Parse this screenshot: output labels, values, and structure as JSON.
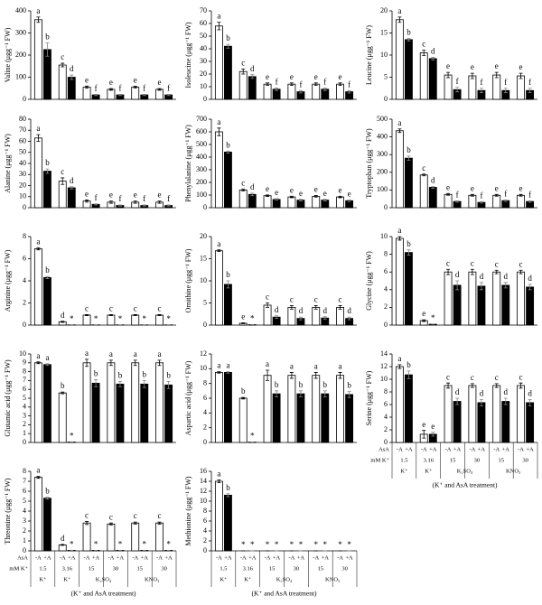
{
  "chart_data": [
    {
      "type": "bar",
      "ylabel": "Valine (μgg⁻¹ FW)",
      "ylim": [
        0,
        400
      ],
      "yticks": [
        0,
        100,
        200,
        300,
        400
      ],
      "series": [
        {
          "name": "-A",
          "color": "#ffffff",
          "values": [
            360,
            155,
            55,
            45,
            55,
            45
          ],
          "errors": [
            12,
            8,
            5,
            4,
            4,
            4
          ],
          "letters": [
            "a",
            "c",
            "e",
            "e",
            "e",
            "e"
          ]
        },
        {
          "name": "+A",
          "color": "#000000",
          "values": [
            225,
            100,
            20,
            20,
            20,
            20
          ],
          "errors": [
            30,
            10,
            3,
            3,
            3,
            3
          ],
          "letters": [
            "b",
            "d",
            "f",
            "f",
            "f",
            "f"
          ]
        }
      ]
    },
    {
      "type": "bar",
      "ylabel": "Isoleucine (μgg⁻¹ FW)",
      "ylim": [
        0,
        70
      ],
      "yticks": [
        0,
        10,
        20,
        30,
        40,
        50,
        60,
        70
      ],
      "series": [
        {
          "name": "-A",
          "color": "#ffffff",
          "values": [
            58,
            22,
            12,
            12,
            12,
            12
          ],
          "errors": [
            3,
            2,
            1,
            1,
            1,
            1
          ],
          "letters": [
            "a",
            "c",
            "e",
            "e",
            "e",
            "e"
          ]
        },
        {
          "name": "+A",
          "color": "#000000",
          "values": [
            42,
            18,
            8,
            6,
            8,
            6
          ],
          "errors": [
            1.5,
            1.5,
            1,
            1,
            1,
            1
          ],
          "letters": [
            "b",
            "d",
            "f",
            "f",
            "f",
            "f"
          ]
        }
      ]
    },
    {
      "type": "bar",
      "ylabel": "Leucine (μgg⁻¹ FW)",
      "ylim": [
        0,
        20
      ],
      "yticks": [
        0,
        5,
        10,
        15,
        20
      ],
      "series": [
        {
          "name": "-A",
          "color": "#ffffff",
          "values": [
            18,
            10.5,
            5.5,
            5.3,
            5.5,
            5.3
          ],
          "errors": [
            0.6,
            0.6,
            0.6,
            0.6,
            0.6,
            0.6
          ],
          "letters": [
            "a",
            "c",
            "e",
            "e",
            "e",
            "e"
          ]
        },
        {
          "name": "+A",
          "color": "#000000",
          "values": [
            13.5,
            9.2,
            2.2,
            2,
            2,
            2
          ],
          "errors": [
            0.3,
            0.3,
            0.5,
            0.5,
            0.5,
            0.5
          ],
          "letters": [
            "b",
            "d",
            "f",
            "f",
            "f",
            "f"
          ]
        }
      ]
    },
    {
      "type": "bar",
      "ylabel": "Alanine (μgg⁻¹ FW)",
      "ylim": [
        0,
        80
      ],
      "yticks": [
        0,
        10,
        20,
        30,
        40,
        50,
        60,
        70,
        80
      ],
      "series": [
        {
          "name": "-A",
          "color": "#ffffff",
          "values": [
            63,
            24,
            6,
            5,
            5,
            5
          ],
          "errors": [
            3,
            3,
            1,
            1,
            1,
            1
          ],
          "letters": [
            "a",
            "c",
            "e",
            "e",
            "e",
            "e"
          ]
        },
        {
          "name": "+A",
          "color": "#000000",
          "values": [
            33,
            18,
            3,
            2,
            2,
            2
          ],
          "errors": [
            2,
            1,
            0.5,
            0.5,
            0.5,
            0.5
          ],
          "letters": [
            "b",
            "d",
            "f",
            "f",
            "f",
            "f"
          ]
        }
      ]
    },
    {
      "type": "bar",
      "ylabel": "Phenylalanine (μgg⁻¹ FW)",
      "ylim": [
        0,
        700
      ],
      "yticks": [
        0,
        100,
        200,
        300,
        400,
        500,
        600,
        700
      ],
      "series": [
        {
          "name": "-A",
          "color": "#ffffff",
          "values": [
            600,
            140,
            95,
            85,
            90,
            85
          ],
          "errors": [
            30,
            8,
            6,
            6,
            6,
            6
          ],
          "letters": [
            "a",
            "c",
            "e",
            "e",
            "e",
            "e"
          ]
        },
        {
          "name": "+A",
          "color": "#000000",
          "values": [
            440,
            105,
            65,
            60,
            60,
            55
          ],
          "errors": [
            8,
            10,
            6,
            6,
            6,
            6
          ],
          "letters": [
            "b",
            "d",
            "e",
            "e",
            "e",
            "e"
          ]
        }
      ]
    },
    {
      "type": "bar",
      "ylabel": "Tryptophan (μgg⁻¹ FW)",
      "ylim": [
        0,
        500
      ],
      "yticks": [
        0,
        100,
        200,
        300,
        400,
        500
      ],
      "series": [
        {
          "name": "-A",
          "color": "#ffffff",
          "values": [
            435,
            185,
            75,
            70,
            70,
            70
          ],
          "errors": [
            10,
            5,
            5,
            5,
            5,
            5
          ],
          "letters": [
            "a",
            "c",
            "e",
            "e",
            "e",
            "e"
          ]
        },
        {
          "name": "+A",
          "color": "#000000",
          "values": [
            280,
            115,
            35,
            30,
            40,
            35
          ],
          "errors": [
            12,
            5,
            4,
            4,
            4,
            4
          ],
          "letters": [
            "b",
            "d",
            "f",
            "f",
            "f",
            "f"
          ]
        }
      ]
    },
    {
      "type": "bar",
      "ylabel": "Arginine (μgg⁻¹ FW)",
      "ylim": [
        0,
        8
      ],
      "yticks": [
        0,
        2,
        4,
        6,
        8
      ],
      "series": [
        {
          "name": "-A",
          "color": "#ffffff",
          "values": [
            6.9,
            0.3,
            0.9,
            0.9,
            0.9,
            0.9
          ],
          "errors": [
            0.1,
            0.05,
            0.05,
            0.05,
            0.05,
            0.05
          ],
          "letters": [
            "a",
            "d",
            "c",
            "c",
            "c",
            "c"
          ]
        },
        {
          "name": "+A",
          "color": "#000000",
          "values": [
            4.3,
            0.02,
            0.02,
            0.02,
            0.02,
            0.02
          ],
          "errors": [
            0.1,
            0,
            0,
            0,
            0,
            0
          ],
          "letters": [
            "b",
            "*",
            "*",
            "*",
            "*",
            "*"
          ]
        }
      ]
    },
    {
      "type": "bar",
      "ylabel": "Ornithine (μgg⁻¹ FW)",
      "ylim": [
        0,
        20
      ],
      "yticks": [
        0,
        5,
        10,
        15,
        20
      ],
      "series": [
        {
          "name": "-A",
          "color": "#ffffff",
          "values": [
            16.8,
            0.4,
            4.5,
            4,
            4,
            4
          ],
          "errors": [
            0.2,
            0.1,
            0.5,
            0.4,
            0.4,
            0.4
          ],
          "letters": [
            "a",
            "e",
            "c",
            "c",
            "c",
            "c"
          ]
        },
        {
          "name": "+A",
          "color": "#000000",
          "values": [
            9.2,
            0.1,
            1.8,
            1.5,
            1.6,
            1.5
          ],
          "errors": [
            0.8,
            0,
            0.3,
            0.3,
            0.3,
            0.3
          ],
          "letters": [
            "b",
            "*",
            "d",
            "d",
            "d",
            "d"
          ]
        }
      ]
    },
    {
      "type": "bar",
      "ylabel": "Glycine (μgg⁻¹ FW)",
      "ylim": [
        0,
        10
      ],
      "yticks": [
        0,
        2,
        4,
        6,
        8,
        10
      ],
      "series": [
        {
          "name": "-A",
          "color": "#ffffff",
          "values": [
            9.8,
            0.5,
            6,
            6,
            6,
            6
          ],
          "errors": [
            0.2,
            0.1,
            0.3,
            0.3,
            0.2,
            0.2
          ],
          "letters": [
            "a",
            "e",
            "c",
            "c",
            "c",
            "c"
          ]
        },
        {
          "name": "+A",
          "color": "#000000",
          "values": [
            8.2,
            0.1,
            4.5,
            4.4,
            4.5,
            4.3
          ],
          "errors": [
            0.3,
            0,
            0.5,
            0.4,
            0.3,
            0.3
          ],
          "letters": [
            "b",
            "*",
            "d",
            "d",
            "d",
            "d"
          ]
        }
      ]
    },
    {
      "type": "bar",
      "ylabel": "Glutamic acid (μgg⁻¹ FW)",
      "ylim": [
        0,
        10
      ],
      "yticks": [
        0,
        1,
        2,
        3,
        4,
        5,
        6,
        7,
        8,
        9,
        10
      ],
      "series": [
        {
          "name": "-A",
          "color": "#ffffff",
          "values": [
            9,
            5.6,
            9,
            9,
            9,
            9
          ],
          "errors": [
            0.1,
            0.1,
            0.4,
            0.3,
            0.3,
            0.3
          ],
          "letters": [
            "a",
            "b",
            "a",
            "a",
            "a",
            "a"
          ]
        },
        {
          "name": "+A",
          "color": "#000000",
          "values": [
            8.8,
            0.05,
            6.7,
            6.6,
            6.6,
            6.5
          ],
          "errors": [
            0.1,
            0,
            0.4,
            0.3,
            0.4,
            0.4
          ],
          "letters": [
            "a",
            "*",
            "b",
            "b",
            "b",
            "b"
          ]
        }
      ]
    },
    {
      "type": "bar",
      "ylabel": "Aspartic acid (μgg⁻¹ FW)",
      "ylim": [
        0,
        12
      ],
      "yticks": [
        0,
        2,
        4,
        6,
        8,
        10,
        12
      ],
      "series": [
        {
          "name": "-A",
          "color": "#ffffff",
          "values": [
            9.5,
            6,
            9.1,
            9.1,
            9.1,
            9.1
          ],
          "errors": [
            0.1,
            0.1,
            0.7,
            0.4,
            0.4,
            0.4
          ],
          "letters": [
            "a",
            "b",
            "a",
            "a",
            "a",
            "a"
          ]
        },
        {
          "name": "+A",
          "color": "#000000",
          "values": [
            9.5,
            0.05,
            6.6,
            6.6,
            6.6,
            6.5
          ],
          "errors": [
            0.1,
            0,
            0.4,
            0.4,
            0.4,
            0.4
          ],
          "letters": [
            "a",
            "*",
            "b",
            "b",
            "b",
            "b"
          ]
        }
      ]
    },
    {
      "type": "bar",
      "ylabel": "Serine (μgg⁻¹ FW)",
      "ylim": [
        0,
        14
      ],
      "yticks": [
        0,
        2,
        4,
        6,
        8,
        10,
        12,
        14
      ],
      "series": [
        {
          "name": "-A",
          "color": "#ffffff",
          "values": [
            12,
            1.3,
            9,
            9,
            9,
            9
          ],
          "errors": [
            0.3,
            0.6,
            0.4,
            0.3,
            0.3,
            0.4
          ],
          "letters": [
            "a",
            "e",
            "c",
            "c",
            "c",
            "c"
          ]
        },
        {
          "name": "+A",
          "color": "#000000",
          "values": [
            10.7,
            1.3,
            6.5,
            6.3,
            6.5,
            6.3
          ],
          "errors": [
            0.6,
            0.3,
            0.5,
            0.5,
            0.5,
            0.5
          ],
          "letters": [
            "b",
            "e",
            "d",
            "d",
            "d",
            "d"
          ]
        }
      ],
      "row_labels": [
        "AsA",
        "mM K⁺"
      ],
      "categories": [
        "1.5",
        "3.16",
        "15",
        "30",
        "15",
        "30"
      ],
      "groups": [
        "K⁺",
        "K⁺",
        "K₂SO₄",
        "KNO₃"
      ],
      "xlabel": "(K⁺ and AsA treatment)"
    },
    {
      "type": "bar",
      "ylabel": "Threonine (μgg⁻¹ FW)",
      "ylim": [
        0,
        8
      ],
      "yticks": [
        0,
        1,
        2,
        3,
        4,
        5,
        6,
        7,
        8
      ],
      "series": [
        {
          "name": "-A",
          "color": "#ffffff",
          "values": [
            7.4,
            0.6,
            2.8,
            2.7,
            2.8,
            2.8
          ],
          "errors": [
            0.1,
            0.05,
            0.15,
            0.1,
            0.1,
            0.1
          ],
          "letters": [
            "a",
            "d",
            "c",
            "c",
            "c",
            "c"
          ]
        },
        {
          "name": "+A",
          "color": "#000000",
          "values": [
            5.3,
            0.05,
            0.05,
            0.05,
            0.05,
            0.05
          ],
          "errors": [
            0.1,
            0,
            0,
            0,
            0,
            0
          ],
          "letters": [
            "b",
            "*",
            "*",
            "*",
            "*",
            "*"
          ]
        }
      ],
      "row_labels": [
        "AsA",
        "mM K⁺"
      ],
      "categories": [
        "1.5",
        "3.16",
        "15",
        "30",
        "15",
        "30"
      ],
      "groups": [
        "K⁺",
        "K⁺",
        "K₂SO₄",
        "KNO₃"
      ],
      "xlabel": "(K⁺ and AsA treatment)"
    },
    {
      "type": "bar",
      "ylabel": "Methionine (μgg⁻¹ FW)",
      "ylim": [
        0,
        16
      ],
      "yticks": [
        0,
        2,
        4,
        6,
        8,
        10,
        12,
        14,
        16
      ],
      "series": [
        {
          "name": "-A",
          "color": "#ffffff",
          "values": [
            14,
            0,
            0,
            0,
            0,
            0
          ],
          "errors": [
            0.3,
            0,
            0,
            0,
            0,
            0
          ],
          "letters": [
            "a",
            "*",
            "*",
            "*",
            "*",
            "*"
          ]
        },
        {
          "name": "+A",
          "color": "#000000",
          "values": [
            11.2,
            0,
            0,
            0,
            0,
            0
          ],
          "errors": [
            0.3,
            0,
            0,
            0,
            0,
            0
          ],
          "letters": [
            "b",
            "*",
            "*",
            "*",
            "*",
            "*"
          ]
        }
      ],
      "categories": [
        "1.5",
        "3.16",
        "15",
        "30",
        "15",
        "30"
      ],
      "groups": [
        "K⁺",
        "K⁺",
        "K₂SO₄",
        "KNO₃"
      ],
      "xlabel": "(K⁺ and AsA treatment)"
    }
  ]
}
